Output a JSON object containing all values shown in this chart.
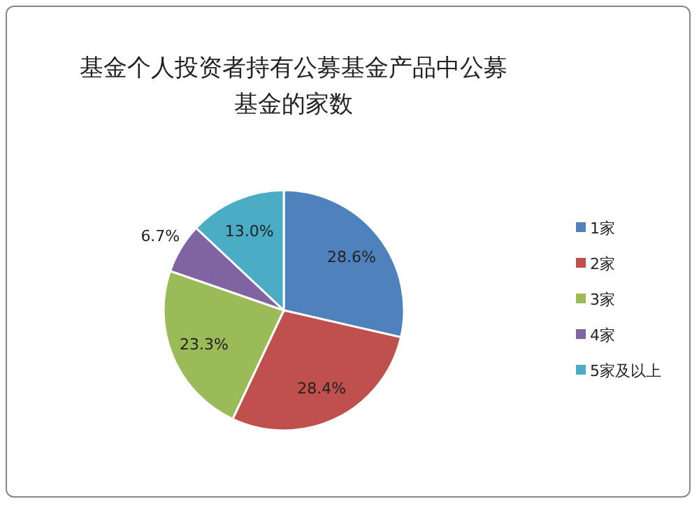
{
  "chart_data": {
    "type": "pie",
    "title": "基金个人投资者持有公募基金产品中公募基金的家数",
    "categories": [
      "1家",
      "2家",
      "3家",
      "4家",
      "5家及以上"
    ],
    "values": [
      28.6,
      28.4,
      23.3,
      6.7,
      13.0
    ],
    "value_labels": [
      "28.6%",
      "28.4%",
      "23.3%",
      "6.7%",
      "13.0%"
    ],
    "colors": [
      "#4f81bd",
      "#c0504d",
      "#9bbb59",
      "#8064a2",
      "#4bacc6"
    ],
    "legend": "right"
  }
}
